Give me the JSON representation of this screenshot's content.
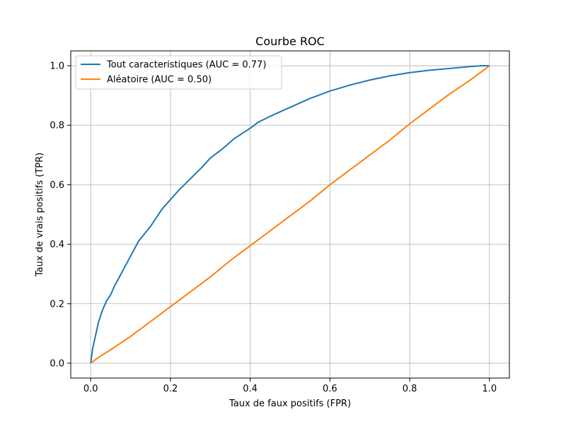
{
  "chart_data": {
    "type": "line",
    "title": "Courbe ROC",
    "xlabel": "Taux de faux positifs (FPR)",
    "ylabel": "Taux de vrais positifs (TPR)",
    "xlim": [
      -0.05,
      1.05
    ],
    "ylim": [
      -0.05,
      1.05
    ],
    "xticks": [
      0.0,
      0.2,
      0.4,
      0.6,
      0.8,
      1.0
    ],
    "yticks": [
      0.0,
      0.2,
      0.4,
      0.6,
      0.8,
      1.0
    ],
    "grid": true,
    "legend_position": "top-left",
    "series": [
      {
        "name": "Tout caracteristiques (AUC = 0.77)",
        "color": "#1f77b4",
        "x": [
          0.0,
          0.005,
          0.01,
          0.02,
          0.03,
          0.04,
          0.05,
          0.06,
          0.08,
          0.1,
          0.12,
          0.15,
          0.18,
          0.2,
          0.22,
          0.25,
          0.28,
          0.3,
          0.33,
          0.36,
          0.4,
          0.42,
          0.45,
          0.5,
          0.55,
          0.6,
          0.65,
          0.7,
          0.75,
          0.8,
          0.85,
          0.9,
          0.95,
          0.98,
          1.0
        ],
        "y": [
          0.0,
          0.05,
          0.08,
          0.14,
          0.18,
          0.21,
          0.23,
          0.26,
          0.31,
          0.36,
          0.41,
          0.46,
          0.52,
          0.55,
          0.58,
          0.62,
          0.66,
          0.69,
          0.72,
          0.755,
          0.79,
          0.81,
          0.83,
          0.86,
          0.89,
          0.915,
          0.935,
          0.952,
          0.966,
          0.977,
          0.985,
          0.991,
          0.997,
          1.0,
          1.0
        ]
      },
      {
        "name": "Aléatoire (AUC = 0.50)",
        "color": "#ff7f0e",
        "x": [
          0.0,
          0.02,
          0.05,
          0.1,
          0.15,
          0.2,
          0.25,
          0.3,
          0.35,
          0.4,
          0.45,
          0.5,
          0.55,
          0.6,
          0.65,
          0.7,
          0.75,
          0.8,
          0.85,
          0.9,
          0.95,
          1.0
        ],
        "y": [
          0.0,
          0.02,
          0.045,
          0.09,
          0.14,
          0.19,
          0.24,
          0.29,
          0.345,
          0.395,
          0.445,
          0.495,
          0.545,
          0.6,
          0.65,
          0.7,
          0.75,
          0.805,
          0.855,
          0.905,
          0.95,
          1.0
        ]
      }
    ]
  }
}
